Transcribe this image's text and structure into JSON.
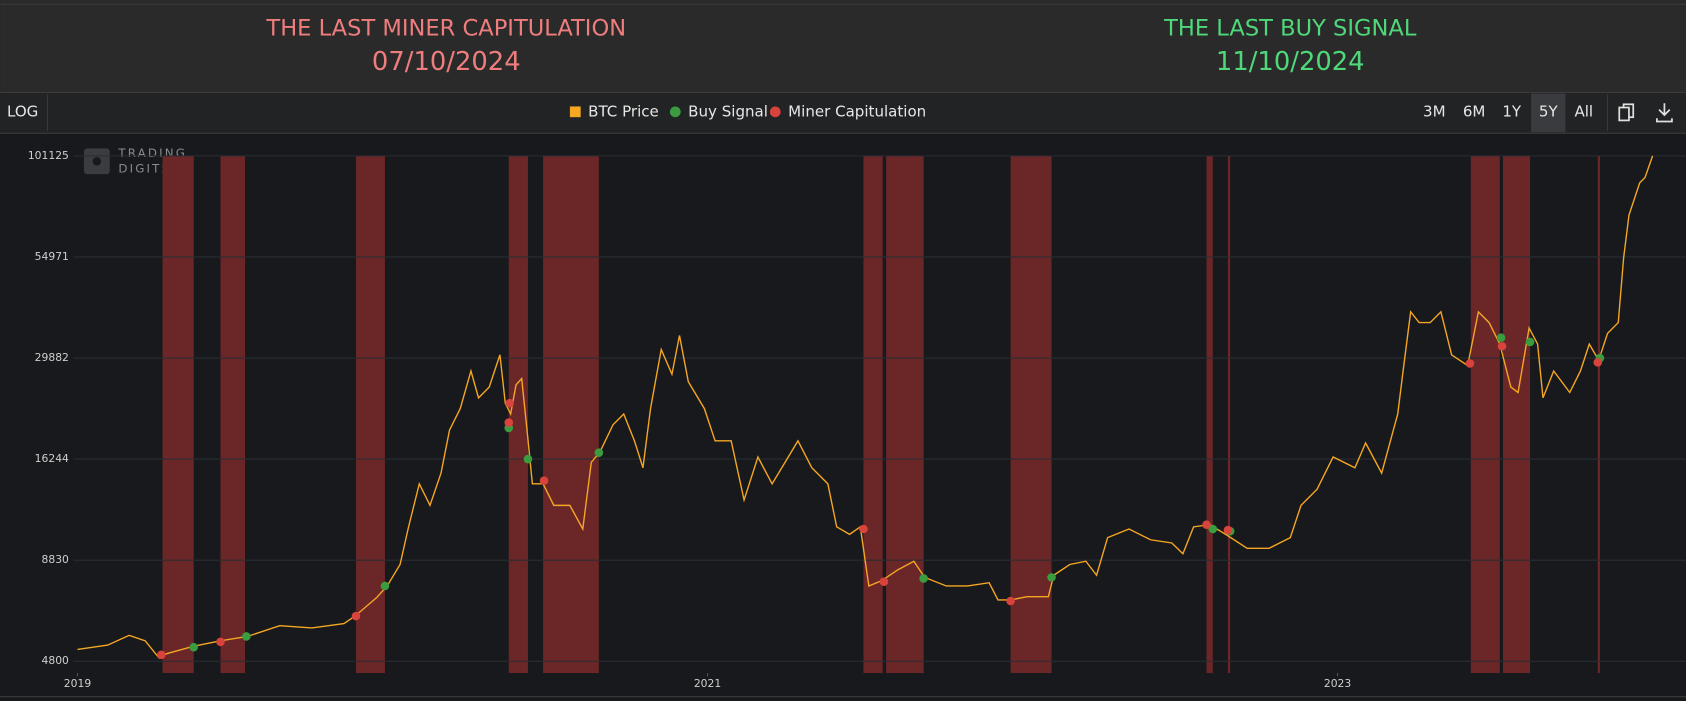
{
  "header": {
    "left": {
      "title": "THE LAST MINER CAPITULATION",
      "date": "07/10/2024"
    },
    "right": {
      "title": "THE LAST BUY SIGNAL",
      "date": "11/10/2024"
    }
  },
  "toolbar": {
    "log": "LOG",
    "ranges": [
      "3M",
      "6M",
      "1Y",
      "5Y",
      "All"
    ],
    "active_range": "5Y"
  },
  "watermark": {
    "line1": "TRADING",
    "line2": "DIGITS"
  },
  "chart_data": {
    "type": "line",
    "log_scale": true,
    "grid": true,
    "xlim": [
      2019,
      2024
    ],
    "xticks": [
      2019,
      2021,
      2023
    ],
    "ylim": [
      4470,
      101125
    ],
    "yticks": [
      4800,
      8830,
      16244,
      29882,
      54971,
      101125
    ],
    "series": [
      {
        "name": "BTC Price",
        "color": "#f5a623",
        "x": [
          2019.0,
          2019.096,
          2019.164,
          2019.215,
          2019.259,
          2019.283,
          2019.369,
          2019.454,
          2019.539,
          2019.642,
          2019.744,
          2019.846,
          2019.881,
          2019.949,
          2019.983,
          2020.024,
          2020.051,
          2020.085,
          2020.119,
          2020.154,
          2020.181,
          2020.215,
          2020.249,
          2020.273,
          2020.307,
          2020.341,
          2020.358,
          2020.375,
          2020.392,
          2020.41,
          2020.427,
          2020.444,
          2020.478,
          2020.512,
          2020.563,
          2020.604,
          2020.631,
          2020.659,
          2020.7,
          2020.734,
          2020.768,
          2020.795,
          2020.819,
          2020.853,
          2020.887,
          2020.911,
          2020.939,
          2020.99,
          2021.024,
          2021.075,
          2021.116,
          2021.16,
          2021.205,
          2021.246,
          2021.287,
          2021.331,
          2021.382,
          2021.41,
          2021.451,
          2021.485,
          2021.512,
          2021.553,
          2021.604,
          2021.655,
          2021.689,
          2021.758,
          2021.826,
          2021.894,
          2021.922,
          2021.962,
          2022.014,
          2022.082,
          2022.099,
          2022.15,
          2022.201,
          2022.235,
          2022.27,
          2022.338,
          2022.406,
          2022.474,
          2022.509,
          2022.543,
          2022.594,
          2022.645,
          2022.713,
          2022.782,
          2022.85,
          2022.884,
          2022.935,
          2022.986,
          2023.055,
          2023.089,
          2023.14,
          2023.191,
          2023.208,
          2023.232,
          2023.259,
          2023.294,
          2023.328,
          2023.362,
          2023.413,
          2023.447,
          2023.481,
          2023.515,
          2023.55,
          2023.573,
          2023.608,
          2023.635,
          2023.652,
          2023.686,
          2023.737,
          2023.771,
          2023.799,
          2023.829,
          2023.857,
          2023.891,
          2023.908,
          2023.925,
          2023.959,
          2023.976,
          2024.0
        ],
        "values": [
          5155,
          5290,
          5610,
          5430,
          4894,
          5024,
          5257,
          5430,
          5573,
          5946,
          5869,
          6023,
          6302,
          7037,
          7557,
          8603,
          10795,
          13991,
          12289,
          14928,
          19348,
          22027,
          27637,
          23503,
          25077,
          30461,
          22752,
          21323,
          25400,
          26412,
          19348,
          13991,
          13991,
          12289,
          12289,
          10656,
          15928,
          16995,
          19985,
          21323,
          18133,
          15419,
          22027,
          31463,
          27104,
          34231,
          25902,
          22027,
          18133,
          18133,
          12694,
          16452,
          13991,
          15928,
          18133,
          15419,
          13991,
          10795,
          10316,
          10795,
          7557,
          7806,
          8329,
          8773,
          7960,
          7557,
          7557,
          7706,
          6946,
          6946,
          7083,
          7083,
          8063,
          8603,
          8773,
          8063,
          10117,
          10656,
          9987,
          9794,
          9179,
          10795,
          10934,
          10316,
          9482,
          9482,
          10117,
          12289,
          13544,
          16452,
          15419,
          17900,
          14928,
          21323,
          27637,
          39479,
          37001,
          37001,
          39479,
          30461,
          28549,
          39479,
          37001,
          32501,
          25077,
          24276,
          35819,
          32501,
          23503,
          27637,
          24276,
          27637,
          32501,
          29488,
          34678,
          37001,
          54617,
          70758,
          85951,
          88778,
          101125
        ]
      },
      {
        "name": "Buy Signal",
        "color": "#3b9b3f",
        "x": [
          2019.369,
          2019.536,
          2019.976,
          2020.369,
          2020.43,
          2020.655,
          2021.686,
          2022.092,
          2022.604,
          2022.659,
          2023.519,
          2023.611,
          2023.833
        ],
        "values": [
          5223,
          5573,
          7557,
          19599,
          16244,
          16885,
          7908,
          7960,
          10656,
          10518,
          33789,
          32923,
          29882
        ]
      },
      {
        "name": "Miner Capitulation",
        "color": "#d8433b",
        "band_color": "#6b2628",
        "x": [
          2019.266,
          2019.454,
          2019.884,
          2020.372,
          2020.369,
          2020.481,
          2021.495,
          2021.56,
          2021.962,
          2022.584,
          2022.652,
          2023.42,
          2023.522,
          2023.826
        ],
        "values": [
          4990,
          5395,
          6302,
          22752,
          20245,
          14266,
          10656,
          7756,
          6902,
          10934,
          10586,
          28920,
          32081,
          29110
        ],
        "periods": [
          [
            2019.27,
            2019.369
          ],
          [
            2019.454,
            2019.532
          ],
          [
            2019.884,
            2019.976
          ],
          [
            2020.369,
            2020.43
          ],
          [
            2020.478,
            2020.655
          ],
          [
            2021.495,
            2021.556
          ],
          [
            2021.567,
            2021.686
          ],
          [
            2021.962,
            2022.092
          ],
          [
            2022.584,
            2022.604
          ],
          [
            2022.652,
            2022.659
          ],
          [
            2023.423,
            2023.515
          ],
          [
            2023.525,
            2023.611
          ],
          [
            2023.826,
            2023.833
          ]
        ]
      }
    ]
  }
}
